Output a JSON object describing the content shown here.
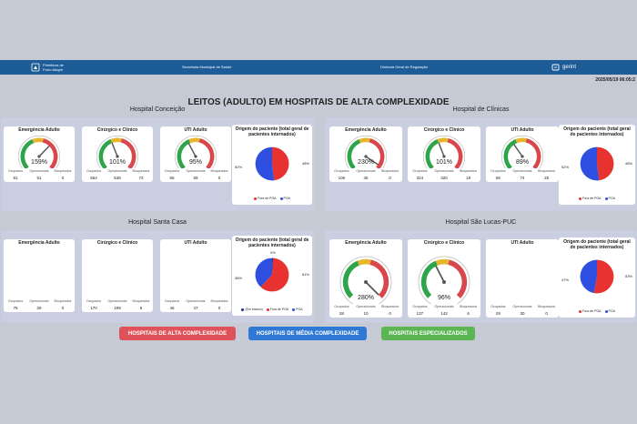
{
  "header": {
    "city_line1": "Prefeitura de",
    "city_line2": "Porto Alegre",
    "secretaria": "Secretaria Municipal de Saúde",
    "diretoria": "Diretoria Geral de Regulação",
    "brand": "gerint"
  },
  "date": "2025/05/19 06:05:2",
  "title": "LEITOS (ADULTO) EM HOSPITAIS DE ALTA COMPLEXIDADE",
  "stat_labels": {
    "ocupados": "Ocupados",
    "operacionais": "Operacionais",
    "bloqueados": "Bloqueados"
  },
  "pie_title": "Origem do paciente (total geral de pacientes internados)",
  "legend": {
    "fora": "Fora de POA",
    "poa": "POA",
    "sem": "(Em branco)"
  },
  "colors": {
    "fora": "#e8322f",
    "poa": "#2f4fe0",
    "green": "#2ea54a",
    "yellow": "#e8b52f",
    "red": "#d9464b"
  },
  "hospitals": [
    {
      "name": "Hospital Conceição",
      "cards": [
        {
          "title": "Emergência Adulto",
          "pct": "159%",
          "value": 1.59,
          "ocupados": "81",
          "operacionais": "51",
          "bloqueados": "0"
        },
        {
          "title": "Cirúrgico e Clínico",
          "pct": "101%",
          "value": 1.01,
          "ocupados": "554",
          "operacionais": "548",
          "bloqueados": "73"
        },
        {
          "title": "UTI Adulto",
          "pct": "95%",
          "value": 0.95,
          "ocupados": "56",
          "operacionais": "59",
          "bloqueados": "0"
        }
      ],
      "pie": {
        "left_pct": "52%",
        "right_pct": "48%",
        "poa": 52,
        "fora": 48
      }
    },
    {
      "name": "Hospital de Clínicas",
      "cards": [
        {
          "title": "Emergência Adulto",
          "pct": "230%",
          "value": 2.3,
          "ocupados": "106",
          "operacionais": "46",
          "bloqueados": "0"
        },
        {
          "title": "Cirúrgico e Clínico",
          "pct": "101%",
          "value": 1.01,
          "ocupados": "324",
          "operacionais": "320",
          "bloqueados": "19"
        },
        {
          "title": "UTI Adulto",
          "pct": "89%",
          "value": 0.89,
          "ocupados": "66",
          "operacionais": "74",
          "bloqueados": "25"
        }
      ],
      "pie": {
        "left_pct": "52%",
        "right_pct": "48%",
        "poa": 52,
        "fora": 48
      }
    },
    {
      "name": "Hospital Santa Casa",
      "cards": [
        {
          "title": "Emergência Adulto",
          "pct": "",
          "value": null,
          "ocupados": "76",
          "operacionais": "28",
          "bloqueados": "0"
        },
        {
          "title": "Cirúrgico e Clínico",
          "pct": "",
          "value": null,
          "ocupados": "170",
          "operacionais": "199",
          "bloqueados": "5"
        },
        {
          "title": "UTI Adulto",
          "pct": "",
          "value": null,
          "ocupados": "46",
          "operacionais": "47",
          "bloqueados": "0"
        }
      ],
      "pie": {
        "left_pct": "38%",
        "right_pct": "61%",
        "top_pct": "0%",
        "poa": 38,
        "fora": 61,
        "sem": 1
      }
    },
    {
      "name": "Hospital São Lucas-PUC",
      "cards": [
        {
          "title": "Emergência Adulto",
          "pct": "280%",
          "value": 2.8,
          "ocupados": "28",
          "operacionais": "10",
          "bloqueados": "0"
        },
        {
          "title": "Cirúrgico e Clínico",
          "pct": "96%",
          "value": 0.96,
          "ocupados": "137",
          "operacionais": "142",
          "bloqueados": "6"
        },
        {
          "title": "UTI Adulto",
          "pct": "",
          "value": null,
          "ocupados": "29",
          "operacionais": "30",
          "bloqueados": "0"
        }
      ],
      "pie": {
        "left_pct": "47%",
        "right_pct": "53%",
        "poa": 47,
        "fora": 53
      }
    }
  ],
  "buttons": {
    "alta": "HOSPITAIS DE ALTA COMPLEXIDADE",
    "media": "HOSPITAIS DE MÉDIA COMPLEXIDADE",
    "especializados": "HOSPITAIS ESPECIALIZADOS"
  }
}
